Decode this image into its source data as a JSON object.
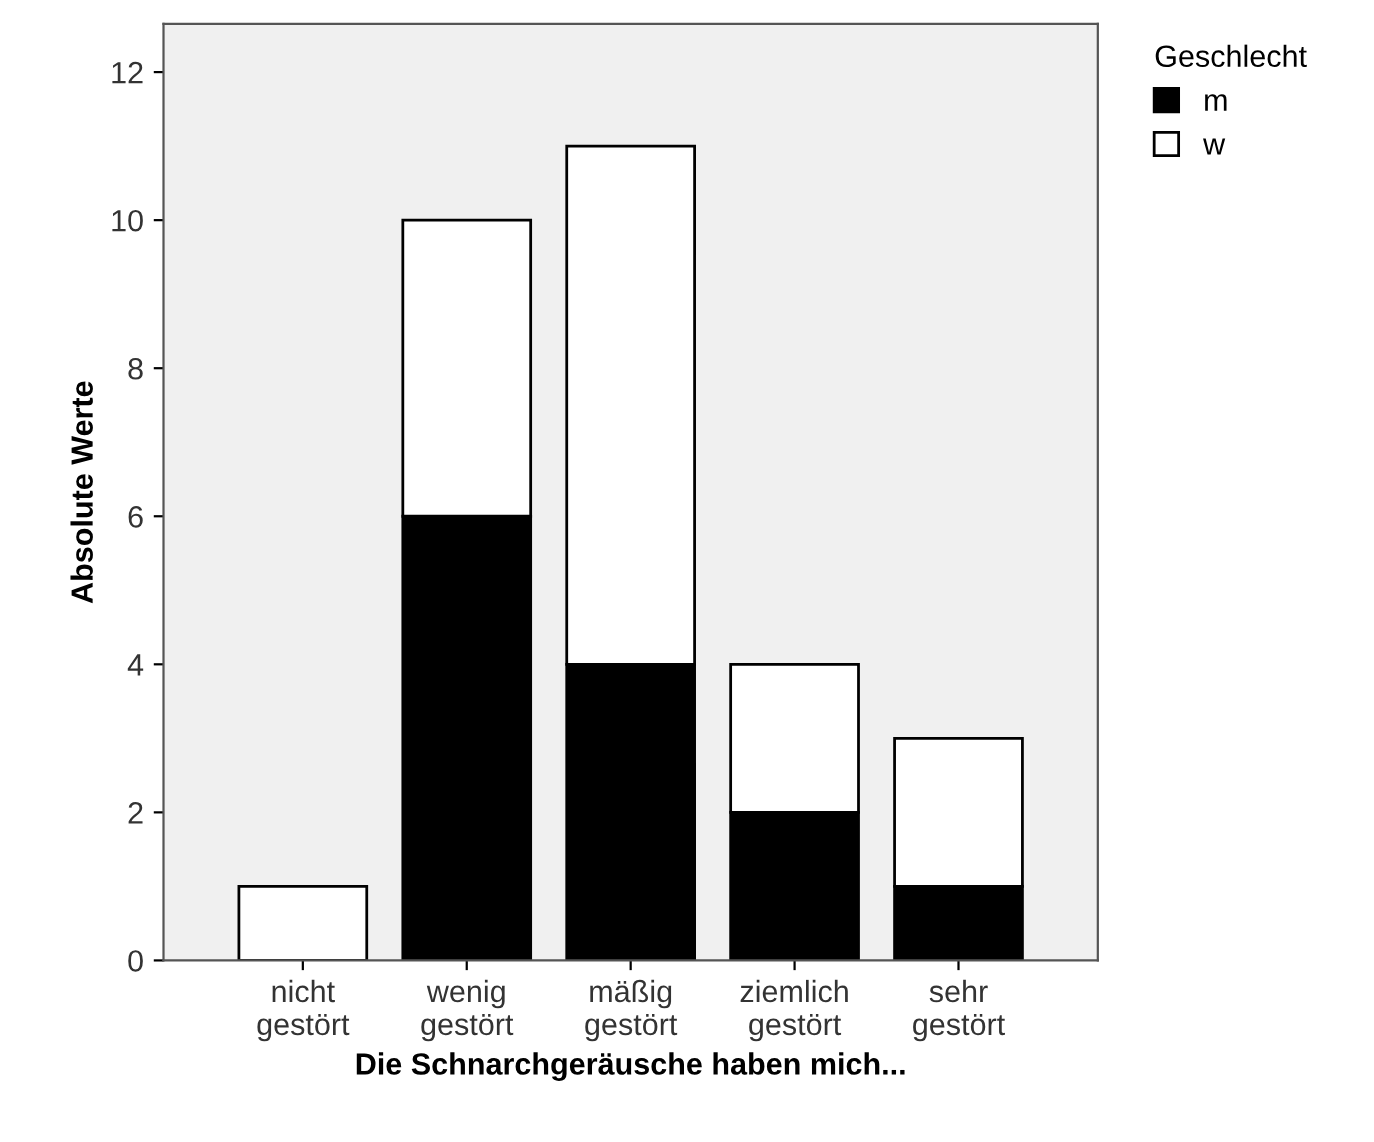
{
  "chart_data": {
    "type": "bar",
    "stacked": true,
    "xlabel": "Die Schnarchgeräusche haben mich...",
    "ylabel": "Absolute Werte",
    "legend_title": "Geschlecht",
    "categories": [
      "nicht\ngestört",
      "wenig\ngestört",
      "mäßig\ngestört",
      "ziemlich\ngestört",
      "sehr\ngestört"
    ],
    "series": [
      {
        "name": "m",
        "color": "#000000",
        "values": [
          0,
          6,
          4,
          2,
          1
        ]
      },
      {
        "name": "w",
        "color": "#ffffff",
        "values": [
          1,
          4,
          7,
          2,
          2
        ]
      }
    ],
    "ylim": [
      0,
      12.65
    ],
    "yticks": [
      0,
      2,
      4,
      6,
      8,
      10,
      12
    ],
    "grid": false,
    "legend": "top right"
  }
}
